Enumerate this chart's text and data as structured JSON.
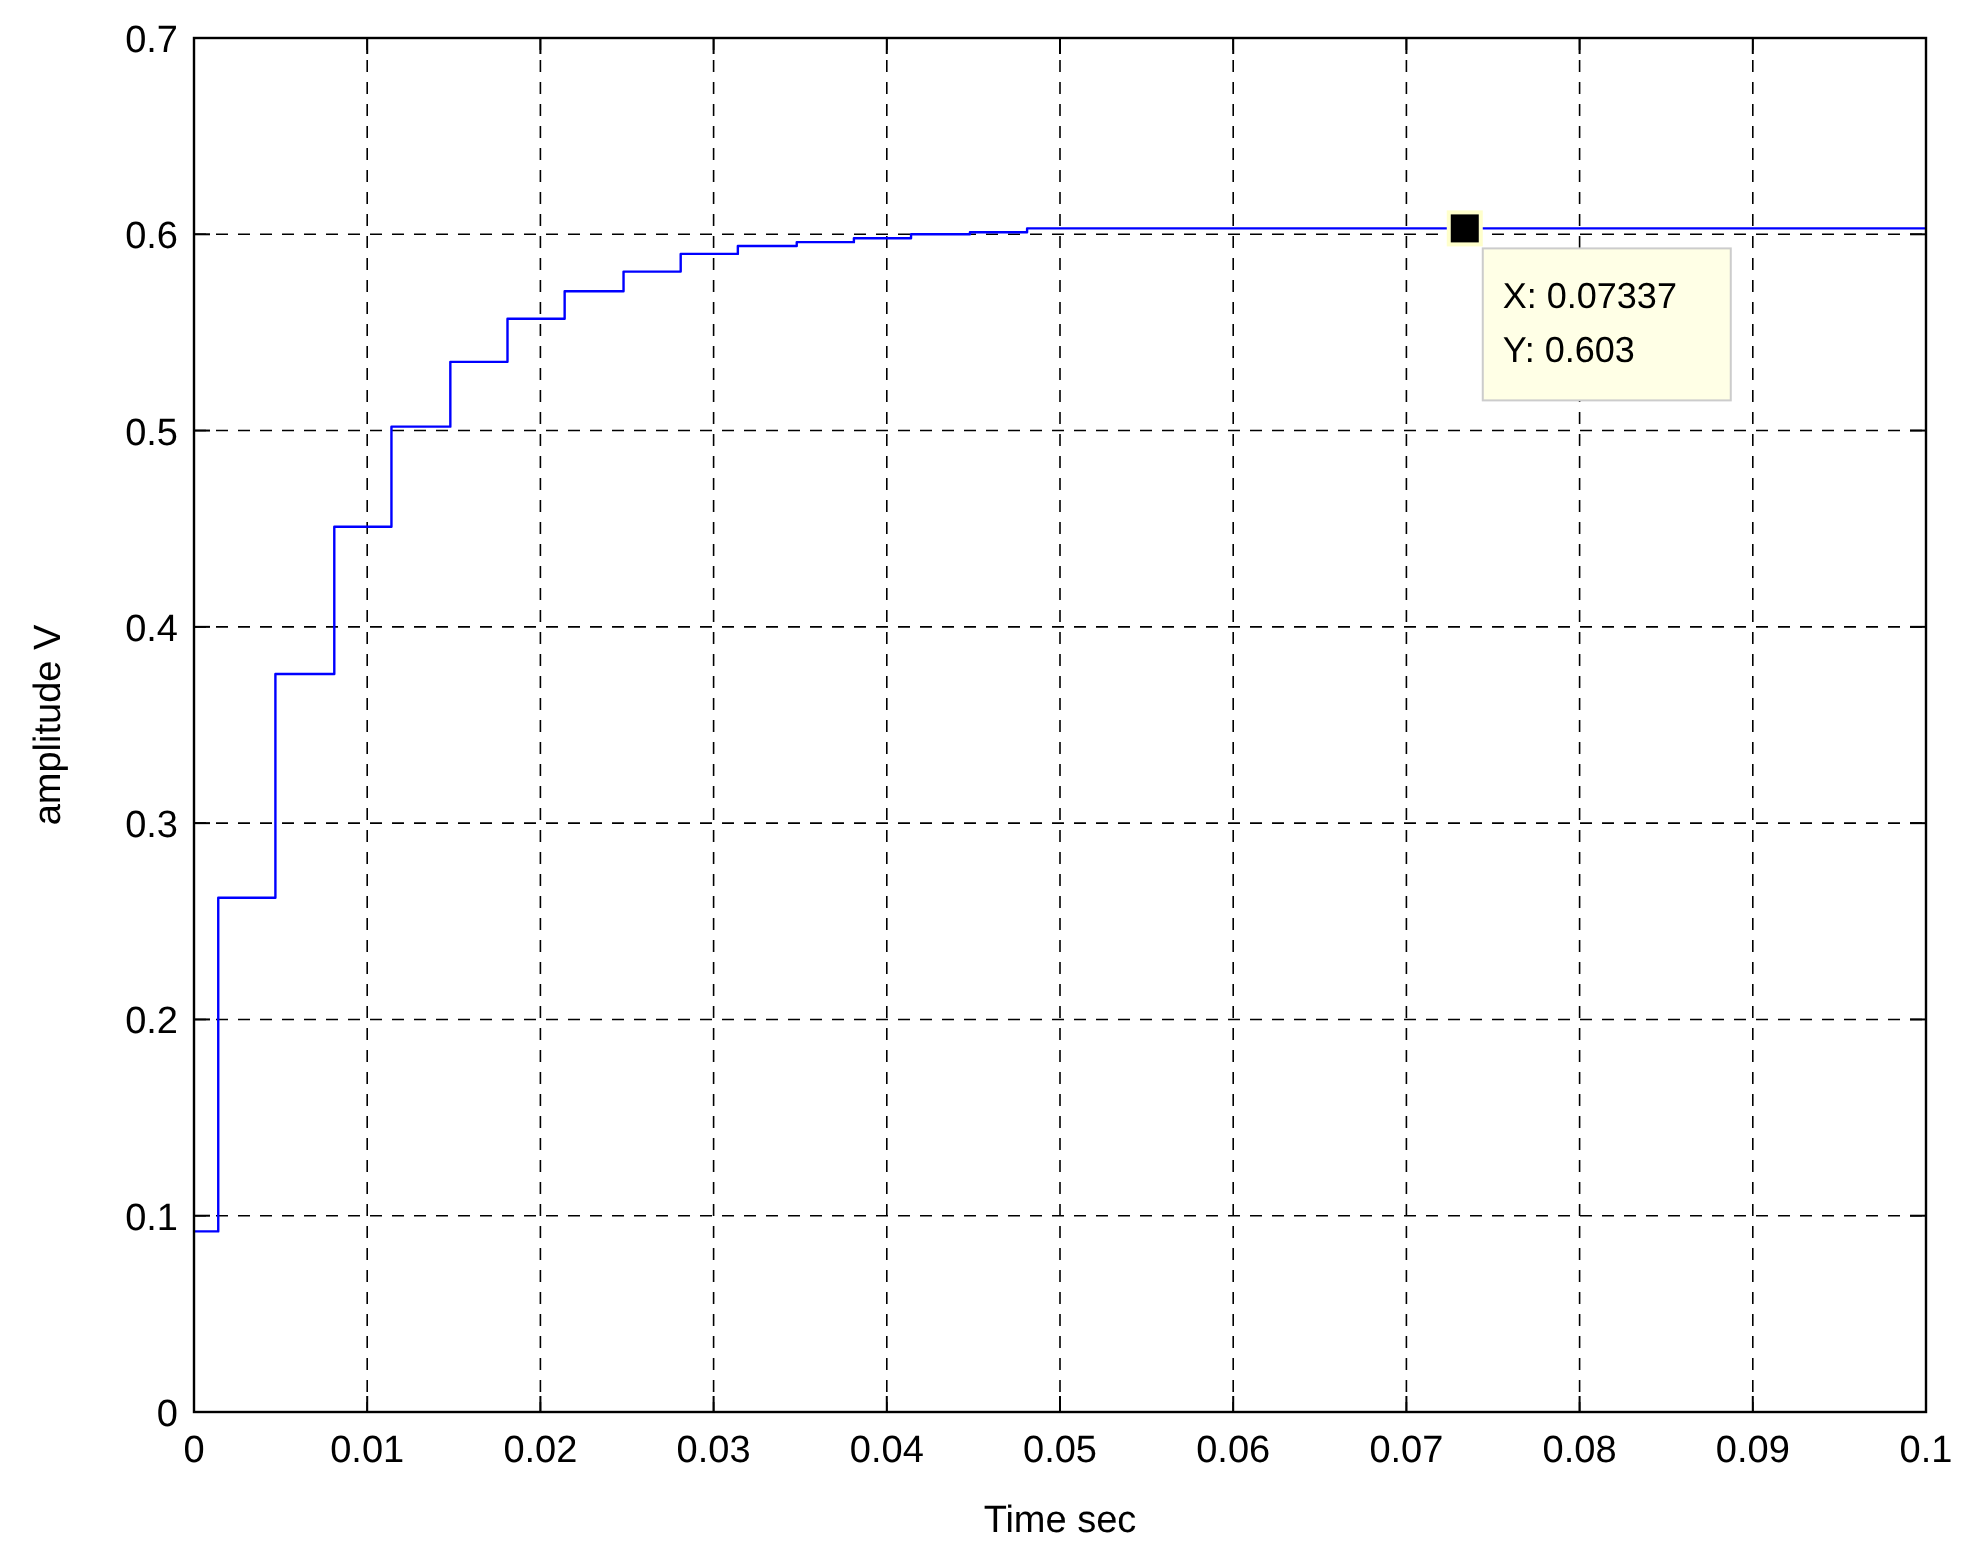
{
  "chart_data": {
    "type": "step",
    "xlabel": "Time sec",
    "ylabel": "amplitude V",
    "x": [
      0,
      0.0014,
      0.0047,
      0.0081,
      0.0114,
      0.0148,
      0.0181,
      0.0214,
      0.0248,
      0.0281,
      0.0314,
      0.0348,
      0.0381,
      0.0414,
      0.0448,
      0.0481,
      0.1
    ],
    "series": [
      {
        "color": "#0000ff",
        "values": [
          0.092,
          0.262,
          0.376,
          0.451,
          0.502,
          0.535,
          0.557,
          0.571,
          0.581,
          0.59,
          0.594,
          0.596,
          0.598,
          0.6,
          0.601,
          0.603,
          0.603
        ]
      }
    ],
    "xlim": [
      0,
      0.1
    ],
    "xticks": [
      0,
      0.01,
      0.02,
      0.03,
      0.04,
      0.05,
      0.06,
      0.07,
      0.08,
      0.09,
      0.1
    ],
    "ylim": [
      0,
      0.7
    ],
    "yticks": [
      0,
      0.1,
      0.2,
      0.3,
      0.4,
      0.5,
      0.6,
      0.7
    ],
    "grid": true,
    "line_style": "solid",
    "marker": "none",
    "annotations": [
      {
        "text": "X: 0.07337\nY: 0.603",
        "x": 0.07337,
        "y": 0.603
      }
    ]
  }
}
